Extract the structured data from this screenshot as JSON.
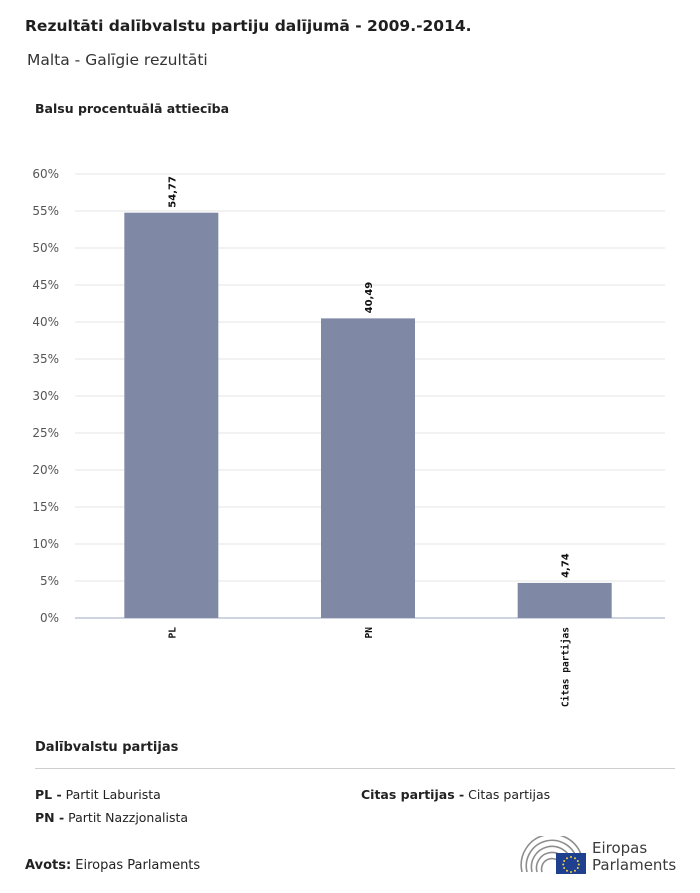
{
  "header": {
    "title": "Rezultāti dalībvalstu partiju dalījumā - 2009.-2014.",
    "subtitle": "Malta - Galīgie rezultāti"
  },
  "chart_data": {
    "type": "bar",
    "ylabel": "Balsu procentuālā attiecība",
    "categories": [
      "PL",
      "PN",
      "Citas partijas"
    ],
    "values": [
      54.77,
      40.49,
      4.74
    ],
    "value_labels": [
      "54,77",
      "40,49",
      "4,74"
    ],
    "ylim": [
      0,
      60
    ],
    "yticks": [
      "0%",
      "5%",
      "10%",
      "15%",
      "20%",
      "25%",
      "30%",
      "35%",
      "40%",
      "45%",
      "50%",
      "55%",
      "60%"
    ],
    "grid": true,
    "bar_color": "#7f89a5"
  },
  "legend": {
    "title": "Dalībvalstu partijas",
    "items": [
      {
        "abbr": "PL -",
        "name": "Partit Laburista"
      },
      {
        "abbr": "PN -",
        "name": "Partit Nazzjonalista"
      },
      {
        "abbr": "Citas partijas -",
        "name": "Citas partijas"
      }
    ]
  },
  "source": {
    "label": "Avots:",
    "value": "Eiropas Parlaments"
  },
  "logo": {
    "line1": "Eiropas",
    "line2": "Parlaments",
    "icon": "european-parliament-hemicycle-logo"
  }
}
